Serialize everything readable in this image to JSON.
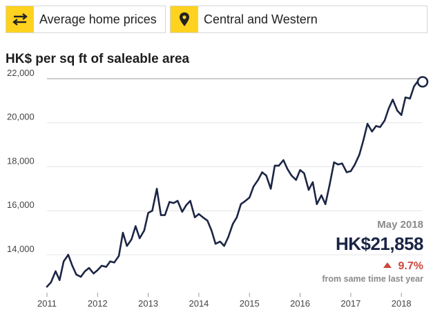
{
  "tabs": [
    {
      "label": "Average home prices",
      "icon": "swap-arrows-icon"
    },
    {
      "label": "Central and Western",
      "icon": "map-pin-icon"
    }
  ],
  "colors": {
    "accent": "#ffd21f",
    "line": "#1b2545",
    "increase": "#c9463d",
    "muted": "#8a8a8a"
  },
  "callout": {
    "date": "May 2018",
    "value": "HK$21,858",
    "change": "9.7%",
    "note": "from same time last year"
  },
  "chart_data": {
    "type": "line",
    "title": "",
    "subtitle": "HK$ per sq ft of saleable area",
    "xlabel": "",
    "ylabel": "",
    "x_range": [
      2011.0,
      2018.42
    ],
    "ylim": [
      12400,
      22250
    ],
    "yticks": [
      14000,
      16000,
      18000,
      20000,
      22000
    ],
    "ytick_labels": [
      "14,000",
      "16,000",
      "18,000",
      "20,000",
      "22,000"
    ],
    "xticks": [
      2011,
      2012,
      2013,
      2014,
      2015,
      2016,
      2017,
      2018
    ],
    "xtick_labels": [
      "2011",
      "2012",
      "2013",
      "2014",
      "2015",
      "2016",
      "2017",
      "2018"
    ],
    "grid": "horizontal",
    "series": [
      {
        "name": "",
        "x": [
          2011.0,
          2011.08,
          2011.17,
          2011.25,
          2011.33,
          2011.42,
          2011.5,
          2011.58,
          2011.67,
          2011.75,
          2011.83,
          2011.92,
          2012.0,
          2012.08,
          2012.17,
          2012.25,
          2012.33,
          2012.42,
          2012.5,
          2012.58,
          2012.67,
          2012.75,
          2012.83,
          2012.92,
          2013.0,
          2013.08,
          2013.17,
          2013.25,
          2013.33,
          2013.42,
          2013.5,
          2013.58,
          2013.67,
          2013.75,
          2013.83,
          2013.92,
          2014.0,
          2014.08,
          2014.17,
          2014.25,
          2014.33,
          2014.42,
          2014.5,
          2014.58,
          2014.67,
          2014.75,
          2014.83,
          2014.92,
          2015.0,
          2015.08,
          2015.17,
          2015.25,
          2015.33,
          2015.42,
          2015.5,
          2015.58,
          2015.67,
          2015.75,
          2015.83,
          2015.92,
          2016.0,
          2016.08,
          2016.17,
          2016.25,
          2016.33,
          2016.42,
          2016.5,
          2016.58,
          2016.67,
          2016.75,
          2016.83,
          2016.92,
          2017.0,
          2017.08,
          2017.17,
          2017.25,
          2017.33,
          2017.42,
          2017.5,
          2017.58,
          2017.67,
          2017.75,
          2017.83,
          2017.92,
          2018.0,
          2018.08,
          2018.17,
          2018.25,
          2018.33,
          2018.42
        ],
        "values": [
          12550,
          12750,
          13250,
          12850,
          13700,
          14000,
          13500,
          13100,
          13000,
          13250,
          13400,
          13150,
          13300,
          13500,
          13450,
          13700,
          13650,
          13950,
          15000,
          14400,
          14700,
          15300,
          14750,
          15100,
          15900,
          16000,
          17000,
          15800,
          15800,
          16400,
          16350,
          16450,
          15950,
          16250,
          16450,
          15700,
          15850,
          15700,
          15550,
          15100,
          14500,
          14600,
          14400,
          14800,
          15400,
          15700,
          16300,
          16450,
          16600,
          17100,
          17400,
          17750,
          17600,
          17000,
          18050,
          18050,
          18300,
          17900,
          17600,
          17400,
          17850,
          17700,
          16950,
          17300,
          16300,
          16700,
          16300,
          17150,
          18200,
          18100,
          18150,
          17750,
          17800,
          18100,
          18550,
          19200,
          19950,
          19600,
          19850,
          19800,
          20100,
          20650,
          21050,
          20550,
          20350,
          21150,
          21100,
          21650,
          21900,
          21858
        ]
      }
    ]
  }
}
